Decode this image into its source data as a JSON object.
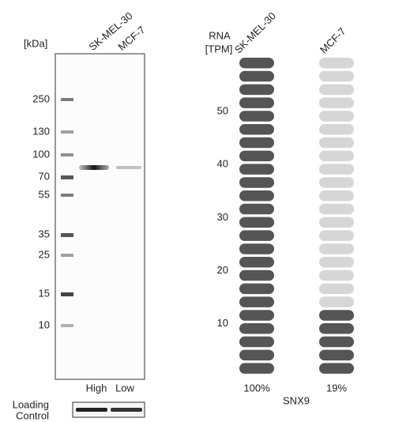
{
  "blot": {
    "unit": "[kDa]",
    "lanes": [
      "SK-MEL-30",
      "MCF-7"
    ],
    "markers": [
      "250",
      "130",
      "100",
      "70",
      "55",
      "35",
      "25",
      "15",
      "10"
    ],
    "levels": [
      "High",
      "Low"
    ],
    "loading_control": [
      "Loading",
      "Control"
    ]
  },
  "rna": {
    "title": [
      "RNA",
      "[TPM]"
    ],
    "yticks": [
      10,
      20,
      30,
      40,
      50
    ],
    "samples": [
      {
        "name": "SK-MEL-30",
        "label": "100%"
      },
      {
        "name": "MCF-7",
        "label": "19%"
      }
    ],
    "gene": "SNX9"
  }
}
